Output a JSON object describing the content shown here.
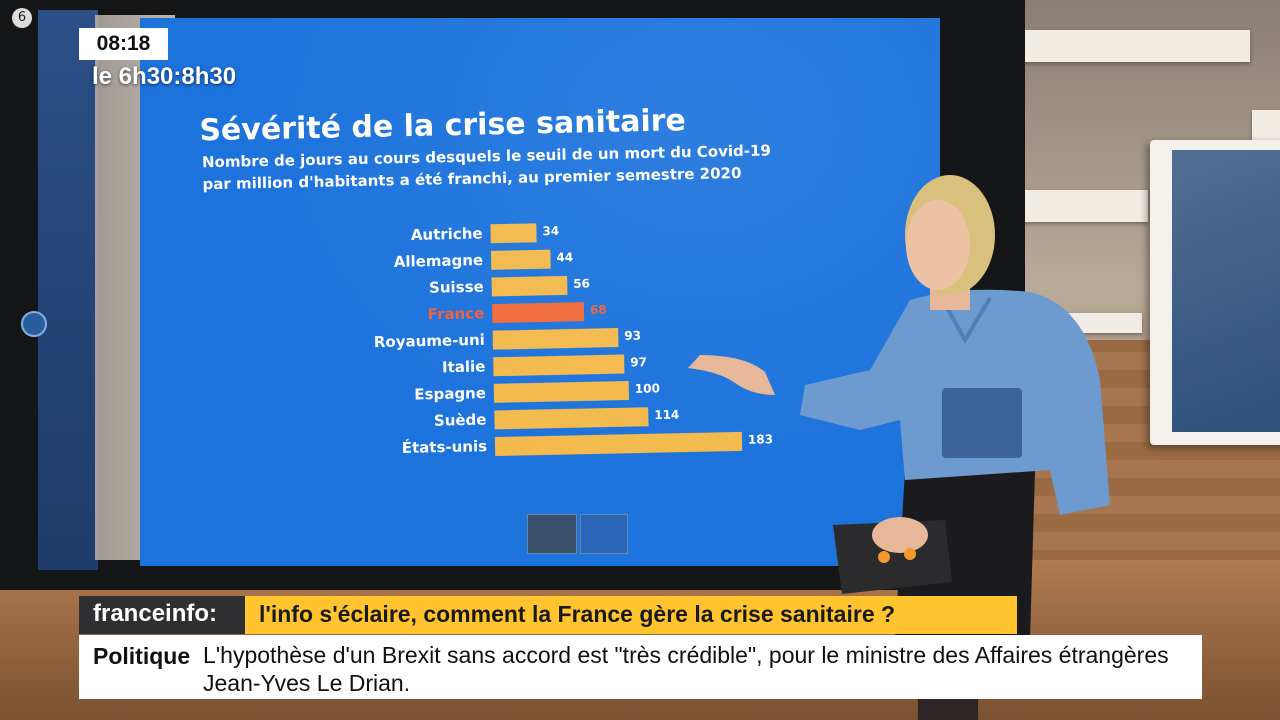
{
  "overlay": {
    "clock": "08:18",
    "program": "le 6h30:8h30",
    "channel_logo": "6",
    "brand": "franceinfo:",
    "headline": "l'info s'éclaire, comment la France gère la crise sanitaire ?",
    "ticker_category": "Politique",
    "ticker_text": "L'hypothèse d'un Brexit sans accord est \"très crédible\", pour le ministre des Affaires étrangères Jean-Yves Le Drian."
  },
  "colors": {
    "screen_background": "#1c73dc",
    "bar": "#f3b94c",
    "bar_highlight": "#f06a3a",
    "label": "#ffffff",
    "label_highlight": "#f0603a",
    "headline_bar": "#ffc42e",
    "brand_bar": "#2f2f31"
  },
  "chart_data": {
    "type": "bar",
    "orientation": "horizontal",
    "title": "Sévérité de la crise sanitaire",
    "subtitle": "Nombre de jours au cours desquels le seuil de un mort du Covid-19 par million d'habitants a été franchi, au premier semestre 2020",
    "subtitle_lines": [
      "Nombre de jours au cours desquels le seuil de un mort du Covid-19",
      "par million d'habitants a été franchi, au premier semestre 2020"
    ],
    "categories": [
      "Autriche",
      "Allemagne",
      "Suisse",
      "France",
      "Royaume-uni",
      "Italie",
      "Espagne",
      "Suède",
      "États-unis"
    ],
    "values": [
      34,
      44,
      56,
      68,
      93,
      97,
      100,
      114,
      183
    ],
    "highlight": "France",
    "xlabel": "",
    "ylabel": "",
    "grid": false,
    "legend": "none"
  }
}
